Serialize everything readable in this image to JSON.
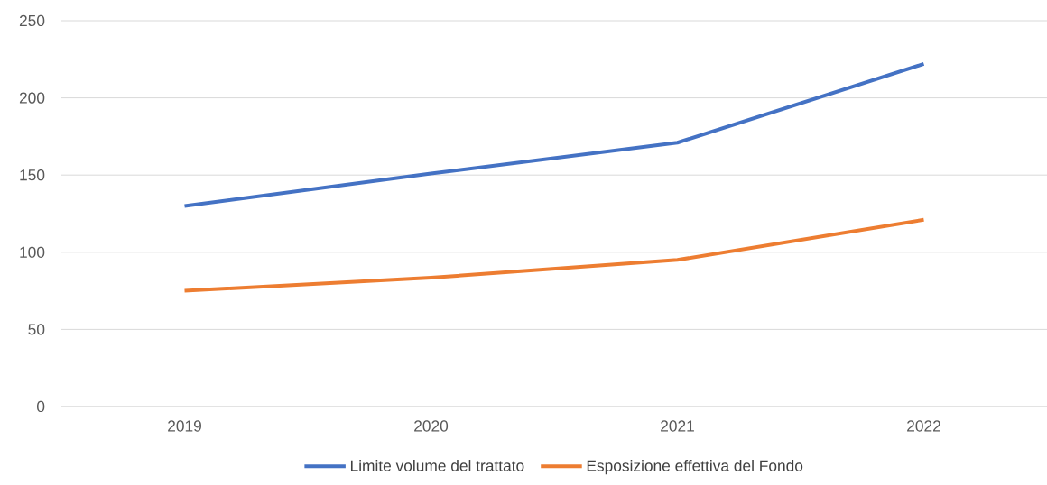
{
  "chart_data": {
    "type": "line",
    "categories": [
      "2019",
      "2020",
      "2021",
      "2022"
    ],
    "series": [
      {
        "name": "Limite volume del trattato",
        "color": "#4472c4",
        "values": [
          130,
          151,
          171,
          222
        ]
      },
      {
        "name": "Esposizione effettiva del Fondo",
        "color": "#ed7d31",
        "values": [
          75,
          83.5,
          95,
          121
        ]
      }
    ],
    "ylim": [
      0,
      250
    ],
    "yticks": [
      0,
      50,
      100,
      150,
      200,
      250
    ],
    "grid": "y",
    "legend": "bottom"
  }
}
